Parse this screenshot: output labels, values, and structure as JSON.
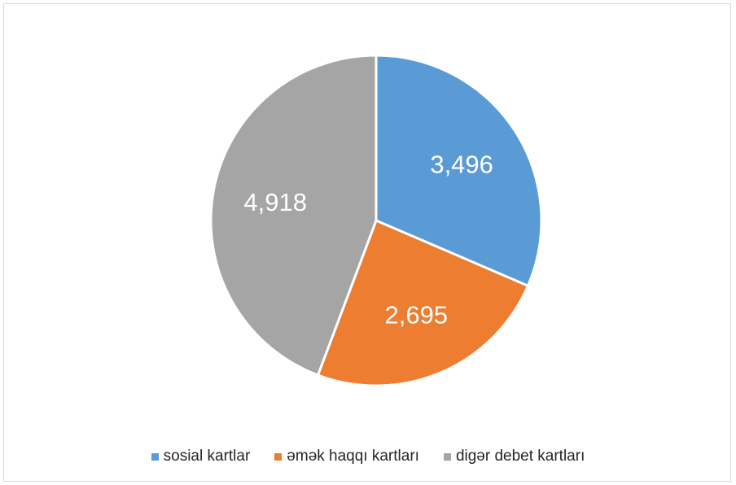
{
  "chart_data": {
    "type": "pie",
    "title": "",
    "categories": [
      "sosial kartlar",
      "əmək haqqı kartları",
      "digər debet kartları"
    ],
    "values": [
      3496,
      2695,
      4918
    ],
    "value_labels": [
      "3,496",
      "2,695",
      "4,918"
    ],
    "colors": [
      "#5b9bd5",
      "#ed7d31",
      "#a5a5a5"
    ],
    "legend_position": "bottom",
    "start_angle_deg": 0,
    "direction": "clockwise"
  },
  "legend": {
    "items": [
      {
        "label": "sosial kartlar",
        "color": "#5b9bd5"
      },
      {
        "label": "əmək haqqı kartları",
        "color": "#ed7d31"
      },
      {
        "label": "digər debet kartları",
        "color": "#a5a5a5"
      }
    ]
  }
}
